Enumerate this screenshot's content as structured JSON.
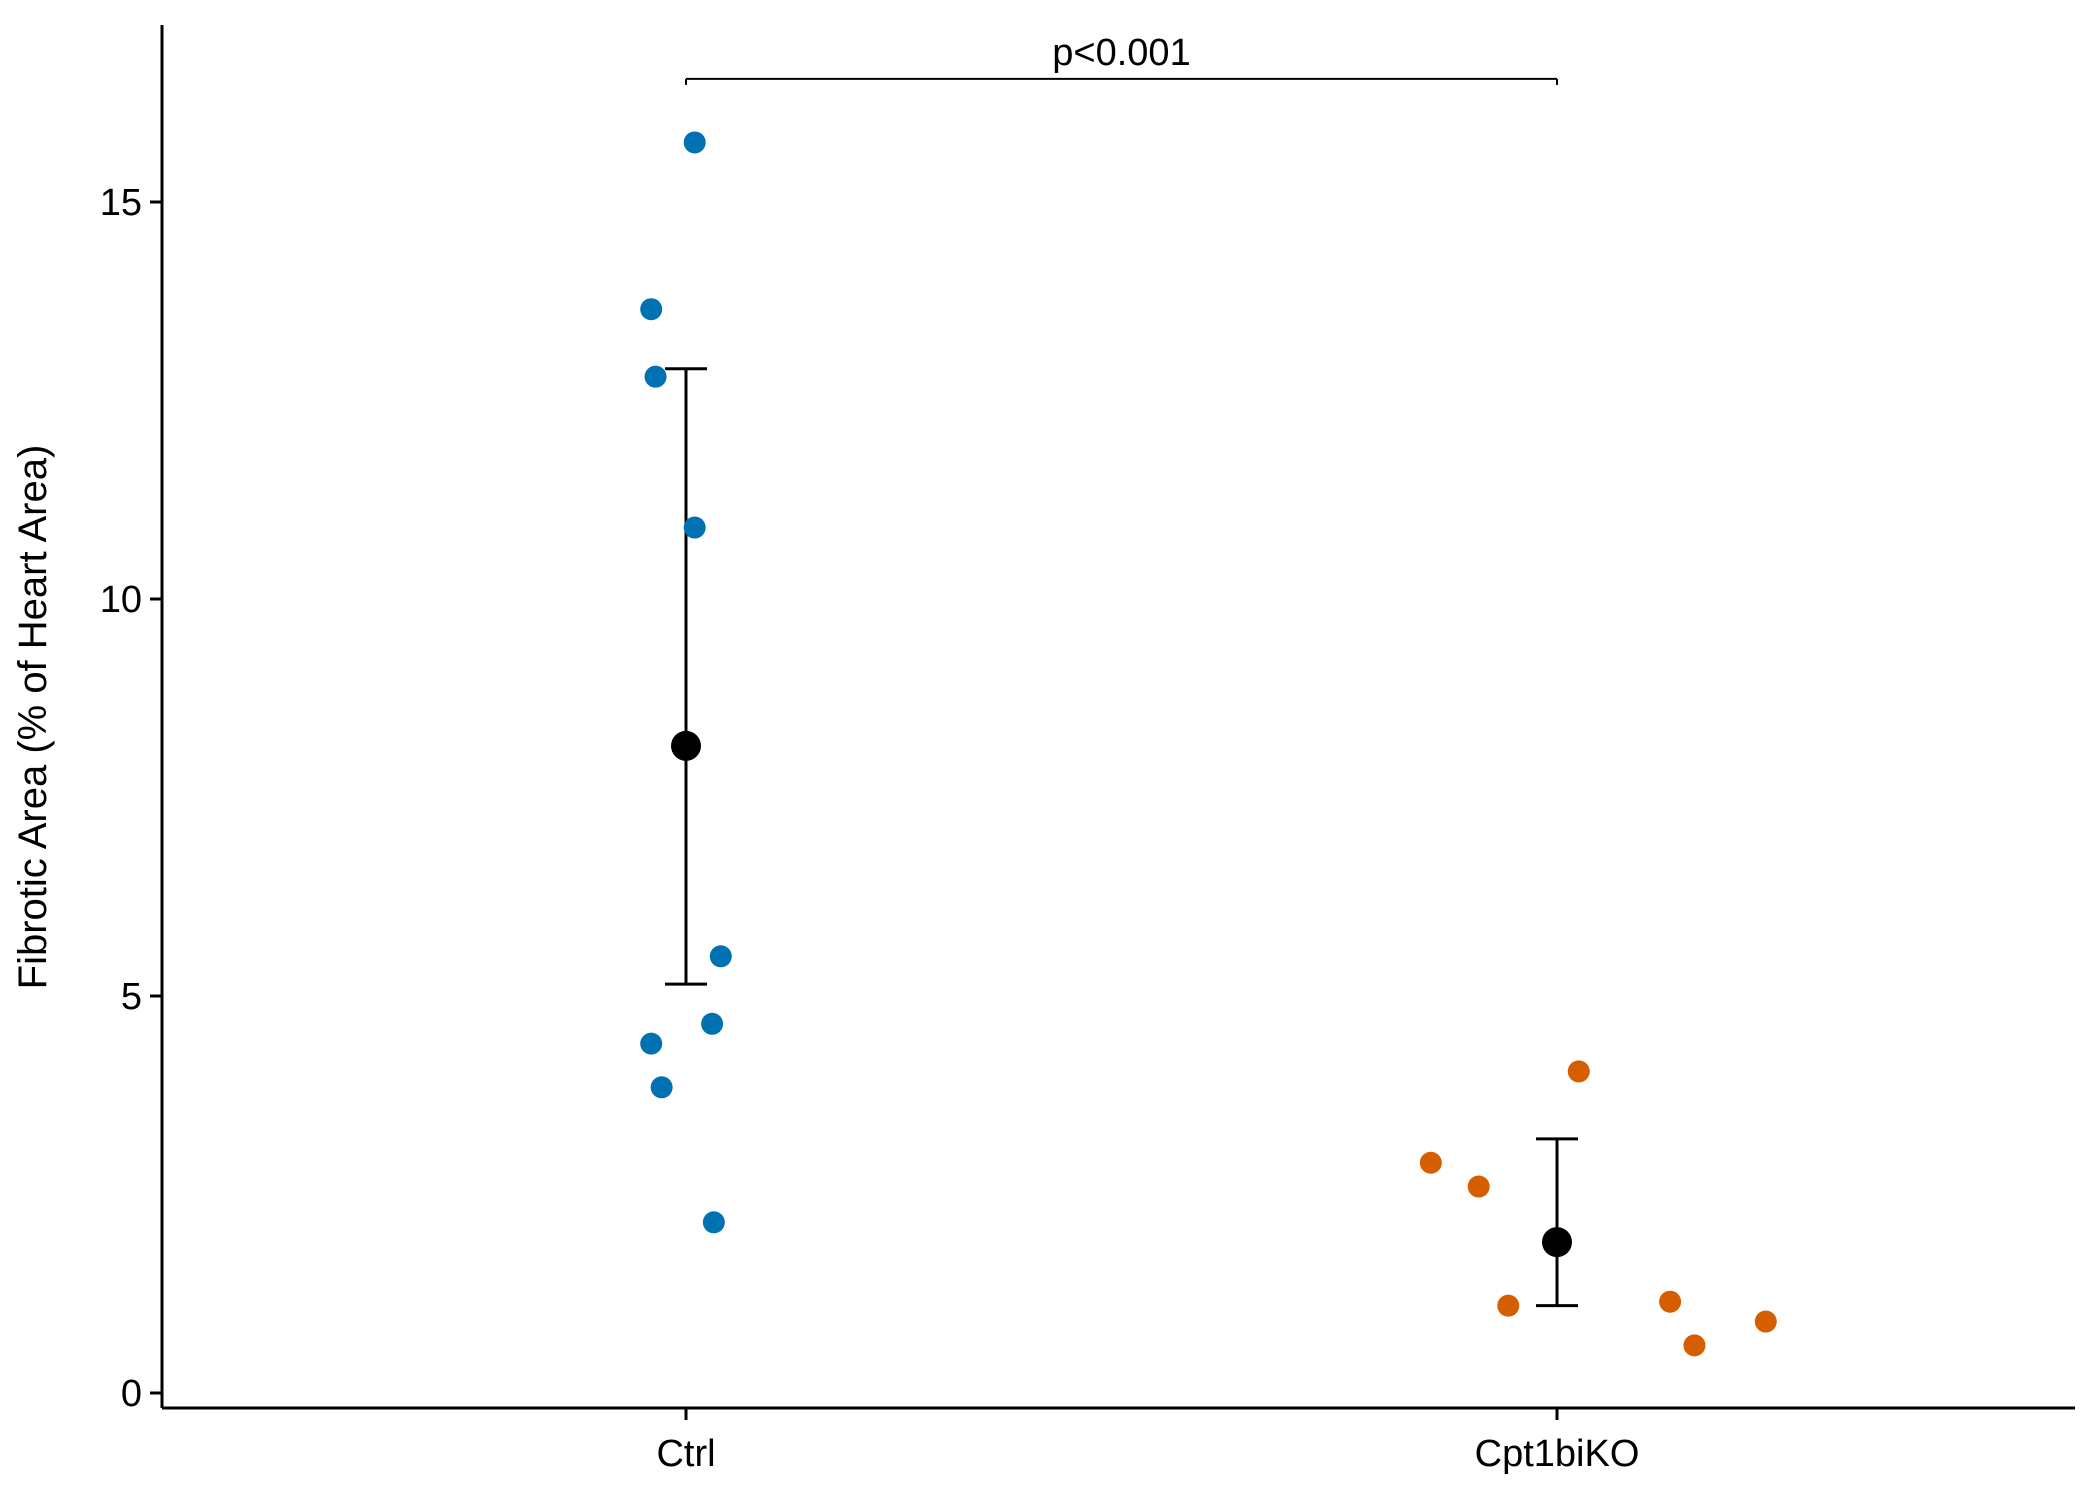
{
  "chart_data": {
    "type": "scatter",
    "title": "",
    "xlabel": "",
    "ylabel": "Fibrotic Area (% of Heart Area)",
    "categories": [
      "Ctrl",
      "Cpt1biKO"
    ],
    "ylim": [
      -0.25,
      17.3
    ],
    "yticks": [
      0,
      5,
      10,
      15
    ],
    "series": [
      {
        "category": "Ctrl",
        "color": "#0072B2",
        "points": [
          {
            "x_offset": 0.01,
            "y": 15.75
          },
          {
            "x_offset": -0.04,
            "y": 13.65
          },
          {
            "x_offset": -0.035,
            "y": 12.8
          },
          {
            "x_offset": 0.01,
            "y": 10.9
          },
          {
            "x_offset": 0.04,
            "y": 5.5
          },
          {
            "x_offset": 0.03,
            "y": 4.65
          },
          {
            "x_offset": -0.04,
            "y": 4.4
          },
          {
            "x_offset": -0.028,
            "y": 3.85
          },
          {
            "x_offset": 0.032,
            "y": 2.15
          }
        ],
        "mean": 8.15,
        "error_low": 5.15,
        "error_high": 12.9
      },
      {
        "category": "Cpt1biKO",
        "color": "#D55E00",
        "points": [
          {
            "x_offset": 0.025,
            "y": 4.05
          },
          {
            "x_offset": -0.145,
            "y": 2.9
          },
          {
            "x_offset": -0.09,
            "y": 2.6
          },
          {
            "x_offset": -0.056,
            "y": 1.1
          },
          {
            "x_offset": 0.13,
            "y": 1.15
          },
          {
            "x_offset": 0.158,
            "y": 0.6
          },
          {
            "x_offset": 0.24,
            "y": 0.9
          }
        ],
        "mean": 1.9,
        "error_low": 1.1,
        "error_high": 3.2
      }
    ],
    "annotation": {
      "text": "p<0.001",
      "y": 16.55,
      "from": "Ctrl",
      "to": "Cpt1biKO"
    },
    "grid": false,
    "legend": "none"
  }
}
